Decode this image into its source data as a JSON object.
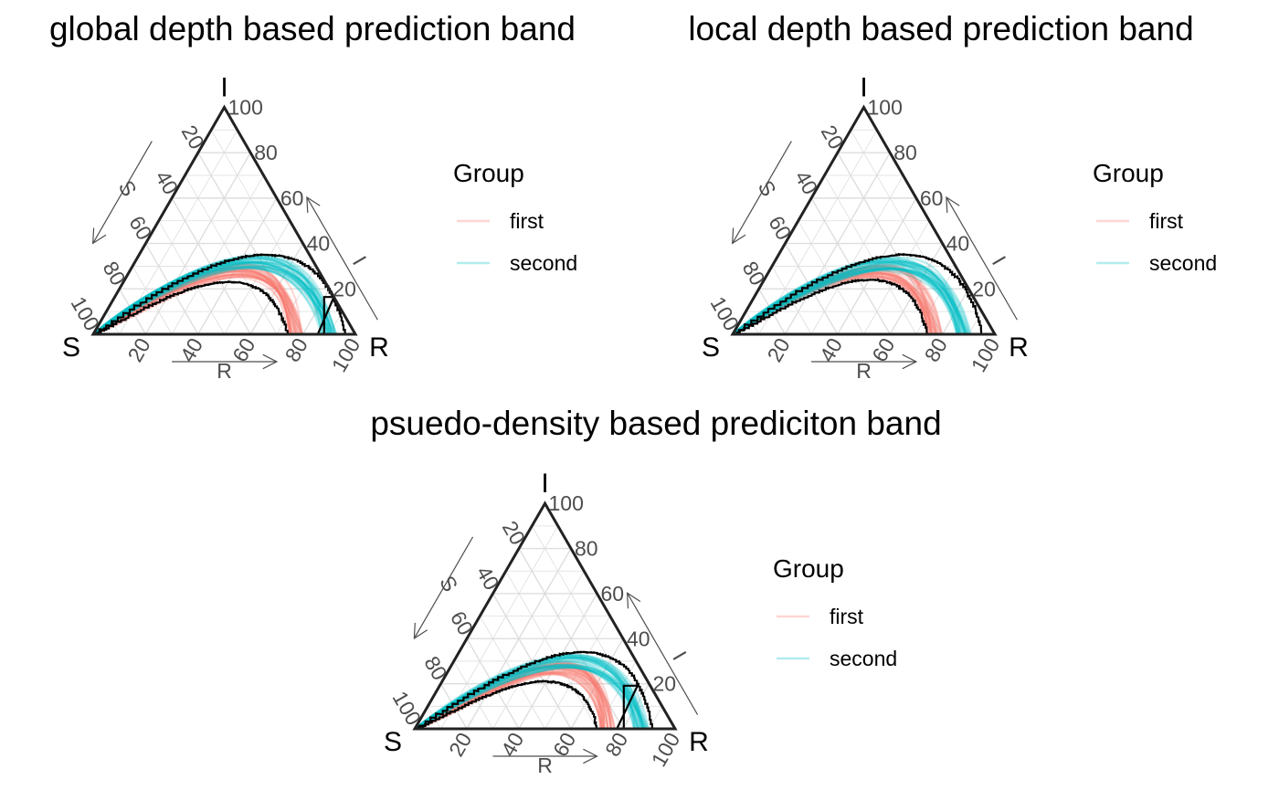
{
  "chart_data": [
    {
      "type": "line",
      "subtype": "ternary",
      "title": "global depth based prediction band",
      "vertices": {
        "top": "I",
        "left": "S",
        "right": "R"
      },
      "axes": {
        "S": "S",
        "I": "I",
        "R": "R"
      },
      "ticks": [
        "20",
        "40",
        "60",
        "80",
        "100"
      ],
      "grid": true,
      "legend": {
        "title": "Group",
        "position": "right",
        "entries": [
          {
            "label": "first",
            "color": "#F8766D"
          },
          {
            "label": "second",
            "color": "#00BFC4"
          }
        ]
      },
      "series": [
        {
          "name": "first",
          "color": "#F8766D",
          "peak_i": 28,
          "peak_r": 42,
          "end_r": 77,
          "spread": 3
        },
        {
          "name": "second",
          "color": "#00BFC4",
          "peak_i": 32,
          "peak_r": 45,
          "end_r": 90,
          "spread": 3
        }
      ],
      "band": {
        "outer": {
          "peak_i": 35,
          "peak_r": 48,
          "end_r": 96
        },
        "inner": {
          "peak_i": 23,
          "peak_r": 40,
          "end_r": 74
        },
        "hole": {
          "peak_i": 21,
          "peak_r": 82,
          "end_r": 88
        }
      }
    },
    {
      "type": "line",
      "subtype": "ternary",
      "title": "local depth based prediction band",
      "vertices": {
        "top": "I",
        "left": "S",
        "right": "R"
      },
      "axes": {
        "S": "S",
        "I": "I",
        "R": "R"
      },
      "ticks": [
        "20",
        "40",
        "60",
        "80",
        "100"
      ],
      "grid": true,
      "legend": {
        "title": "Group",
        "position": "right",
        "entries": [
          {
            "label": "first",
            "color": "#F8766D"
          },
          {
            "label": "second",
            "color": "#00BFC4"
          }
        ]
      },
      "series": [
        {
          "name": "first",
          "color": "#F8766D",
          "peak_i": 28,
          "peak_r": 40,
          "end_r": 77,
          "spread": 3
        },
        {
          "name": "second",
          "color": "#00BFC4",
          "peak_i": 31,
          "peak_r": 44,
          "end_r": 88,
          "spread": 3
        }
      ],
      "band": {
        "outer": {
          "peak_i": 35,
          "peak_r": 47,
          "end_r": 95
        },
        "inner": {
          "peak_i": 24,
          "peak_r": 40,
          "end_r": 74
        },
        "hole": {
          "peak_i": 10,
          "peak_r": 84,
          "end_r": 88
        }
      }
    },
    {
      "type": "line",
      "subtype": "ternary",
      "title": "psuedo-density based prediciton band",
      "vertices": {
        "top": "I",
        "left": "S",
        "right": "R"
      },
      "axes": {
        "S": "S",
        "I": "I",
        "R": "R"
      },
      "ticks": [
        "20",
        "40",
        "60",
        "80",
        "100"
      ],
      "grid": true,
      "legend": {
        "title": "Group",
        "position": "right",
        "entries": [
          {
            "label": "first",
            "color": "#F8766D"
          },
          {
            "label": "second",
            "color": "#00BFC4"
          }
        ]
      },
      "series": [
        {
          "name": "first",
          "color": "#F8766D",
          "peak_i": 27,
          "peak_r": 41,
          "end_r": 74,
          "spread": 3
        },
        {
          "name": "second",
          "color": "#00BFC4",
          "peak_i": 30,
          "peak_r": 44,
          "end_r": 87,
          "spread": 3
        }
      ],
      "band": {
        "outer": {
          "peak_i": 34,
          "peak_r": 47,
          "end_r": 91
        },
        "inner": {
          "peak_i": 21,
          "peak_r": 39,
          "end_r": 70
        },
        "hole": {
          "peak_i": 20,
          "peak_r": 74,
          "end_r": 80
        }
      }
    }
  ]
}
